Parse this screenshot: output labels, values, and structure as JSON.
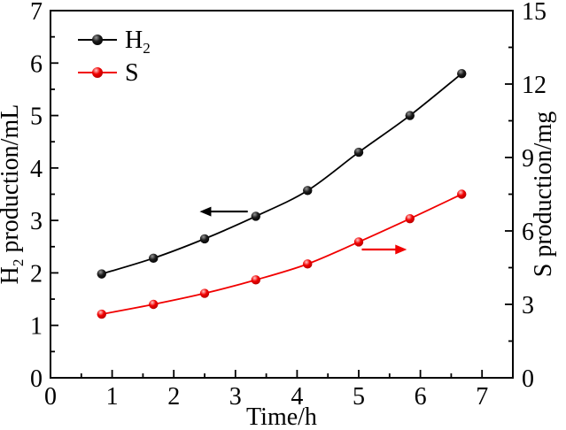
{
  "chart_data": {
    "type": "line",
    "title": "",
    "xlabel": "Time/h",
    "ylabel_left": {
      "main": "H",
      "sub": "2",
      "rest": " production/mL"
    },
    "ylabel_right": {
      "main": "S",
      "sub": "",
      "rest": " production/mg"
    },
    "x": [
      0.83,
      1.67,
      2.5,
      3.33,
      4.17,
      5.0,
      5.83,
      6.67
    ],
    "series": [
      {
        "name": "H2",
        "label_main": "H",
        "label_sub": "2",
        "axis": "left",
        "color": "#000000",
        "marker_gradient": [
          "#969696",
          "#1c1c1c",
          "#000000"
        ],
        "values": [
          1.98,
          2.28,
          2.65,
          3.08,
          3.57,
          4.3,
          5.0,
          5.8
        ]
      },
      {
        "name": "S",
        "label_main": "S",
        "label_sub": "",
        "axis": "right",
        "color": "#f10000",
        "marker_gradient": [
          "#ffcaca",
          "#f10000",
          "#aa0000"
        ],
        "values": [
          2.6,
          3.0,
          3.45,
          4.0,
          4.65,
          5.55,
          6.5,
          7.5
        ]
      }
    ],
    "x_axis": {
      "min": 0,
      "max": 7.5,
      "ticks": [
        0,
        1,
        2,
        3,
        4,
        5,
        6,
        7
      ],
      "minor_step": 0.5,
      "major_step": 1
    },
    "y_left": {
      "min": 0,
      "max": 7,
      "ticks": [
        0,
        1,
        2,
        3,
        4,
        5,
        6,
        7
      ],
      "minor_step": 0.5,
      "major_step": 1
    },
    "y_right": {
      "min": 0,
      "max": 15,
      "ticks": [
        0,
        3,
        6,
        9,
        12,
        15
      ],
      "minor_step": 1.5,
      "major_step": 3
    },
    "grid": "off",
    "legend": {
      "position": "top-left"
    },
    "annotations": [
      {
        "type": "arrow",
        "axis": "left",
        "x1": 3.2,
        "y1": 3.17,
        "x2": 2.42,
        "y2": 3.17,
        "color": "#000000"
      },
      {
        "type": "arrow",
        "axis": "right",
        "x1": 5.05,
        "y1": 5.24,
        "x2": 5.78,
        "y2": 5.24,
        "color": "#f10000"
      }
    ]
  }
}
